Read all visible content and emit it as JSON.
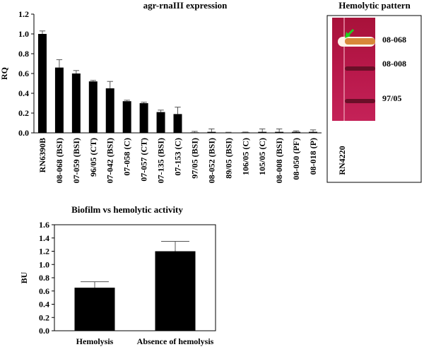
{
  "chart_data": [
    {
      "type": "bar",
      "title": "agr-rnaIII expression",
      "y_label": "RQ",
      "categories": [
        "RN6390B",
        "08-068 (BSI)",
        "07-059 (BSI)",
        "96/05 (CT)",
        "07-042 (BSI)",
        "07-058 (C)",
        "07-057 (CT)",
        "07-135 (BSI)",
        "07-153 (C)",
        "97/05 (BSI)",
        "08-052 (BSI)",
        "89/05 (BSI)",
        "106/05 (C)",
        "105/05 (C)",
        "08-008 (BSI)",
        "08-050 (PF)",
        "08-018 (P)"
      ],
      "values": [
        1.0,
        0.66,
        0.6,
        0.52,
        0.45,
        0.32,
        0.3,
        0.21,
        0.19,
        0.005,
        0.01,
        0.003,
        0.005,
        0.01,
        0.01,
        0.01,
        0.01
      ],
      "errors": [
        0.03,
        0.08,
        0.03,
        0.01,
        0.07,
        0.01,
        0.01,
        0.02,
        0.07,
        0.01,
        0.03,
        0.003,
        0.003,
        0.03,
        0.03,
        0.01,
        0.02
      ],
      "color": "#000000",
      "ylim": [
        0,
        1.2
      ],
      "yticks": [
        {
          "value": 0,
          "label": "0.0"
        },
        0.2,
        0.4,
        0.6,
        0.8,
        {
          "value": 1,
          "label": "1.0"
        },
        1.2
      ]
    },
    {
      "type": "bar",
      "title": "Biofilm vs hemolytic activity",
      "y_label": "BU",
      "categories": [
        "Hemolysis",
        "Absence of hemolysis"
      ],
      "values": [
        0.65,
        1.2
      ],
      "errors": [
        0.09,
        0.15
      ],
      "color": "#000000",
      "ylim": [
        0,
        1.6
      ],
      "yticks": [
        {
          "value": 0,
          "label": "0.0"
        },
        0.2,
        0.4,
        0.6,
        0.8,
        {
          "value": 1,
          "label": "1.0"
        },
        1.2,
        1.4,
        1.6
      ]
    }
  ],
  "photo": {
    "title": "Hemolytic pattern",
    "band_labels": [
      "08-068",
      "08-008",
      "97/05"
    ],
    "strain_label": "RN4220"
  }
}
